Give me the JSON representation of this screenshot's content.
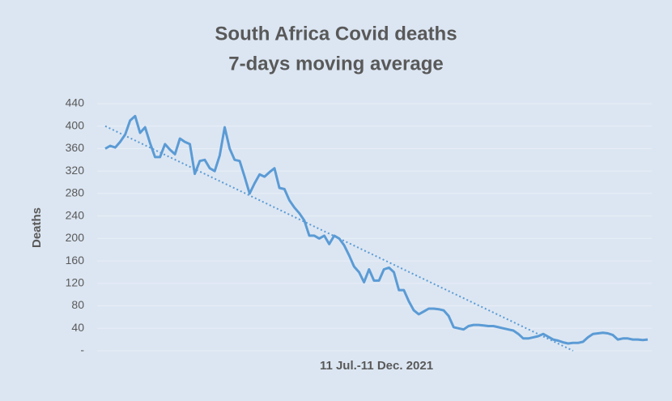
{
  "chart_data": {
    "type": "line",
    "title": "South Africa Covid deaths",
    "subtitle": "7-days moving average",
    "y_label": "Deaths",
    "x_label": "11 Jul.-11 Dec. 2021",
    "ylim": [
      0,
      440
    ],
    "yticks": [
      {
        "value": 0,
        "label": "-"
      },
      40,
      80,
      120,
      160,
      200,
      240,
      280,
      320,
      360,
      400,
      440
    ],
    "grid": true,
    "series": [
      {
        "name": "Deaths",
        "color": "#5b9bd5",
        "values": [
          360,
          365,
          362,
          372,
          385,
          410,
          418,
          388,
          398,
          370,
          345,
          345,
          368,
          358,
          350,
          378,
          372,
          368,
          315,
          338,
          340,
          325,
          320,
          348,
          398,
          360,
          340,
          338,
          310,
          280,
          298,
          314,
          310,
          318,
          325,
          290,
          288,
          268,
          255,
          245,
          232,
          205,
          205,
          200,
          205,
          190,
          205,
          200,
          188,
          170,
          150,
          140,
          122,
          145,
          125,
          125,
          145,
          148,
          140,
          108,
          108,
          88,
          72,
          65,
          70,
          75,
          75,
          74,
          72,
          62,
          42,
          40,
          38,
          44,
          46,
          46,
          45,
          44,
          44,
          42,
          40,
          38,
          36,
          30,
          22,
          22,
          24,
          26,
          30,
          25,
          20,
          18,
          15,
          13,
          14,
          14,
          16,
          24,
          30,
          31,
          32,
          31,
          28,
          20,
          22,
          22,
          20,
          20,
          19,
          20
        ]
      }
    ],
    "trendline": {
      "color": "#5b9bd5",
      "x": [
        0,
        94
      ],
      "values": [
        400,
        0
      ]
    }
  }
}
